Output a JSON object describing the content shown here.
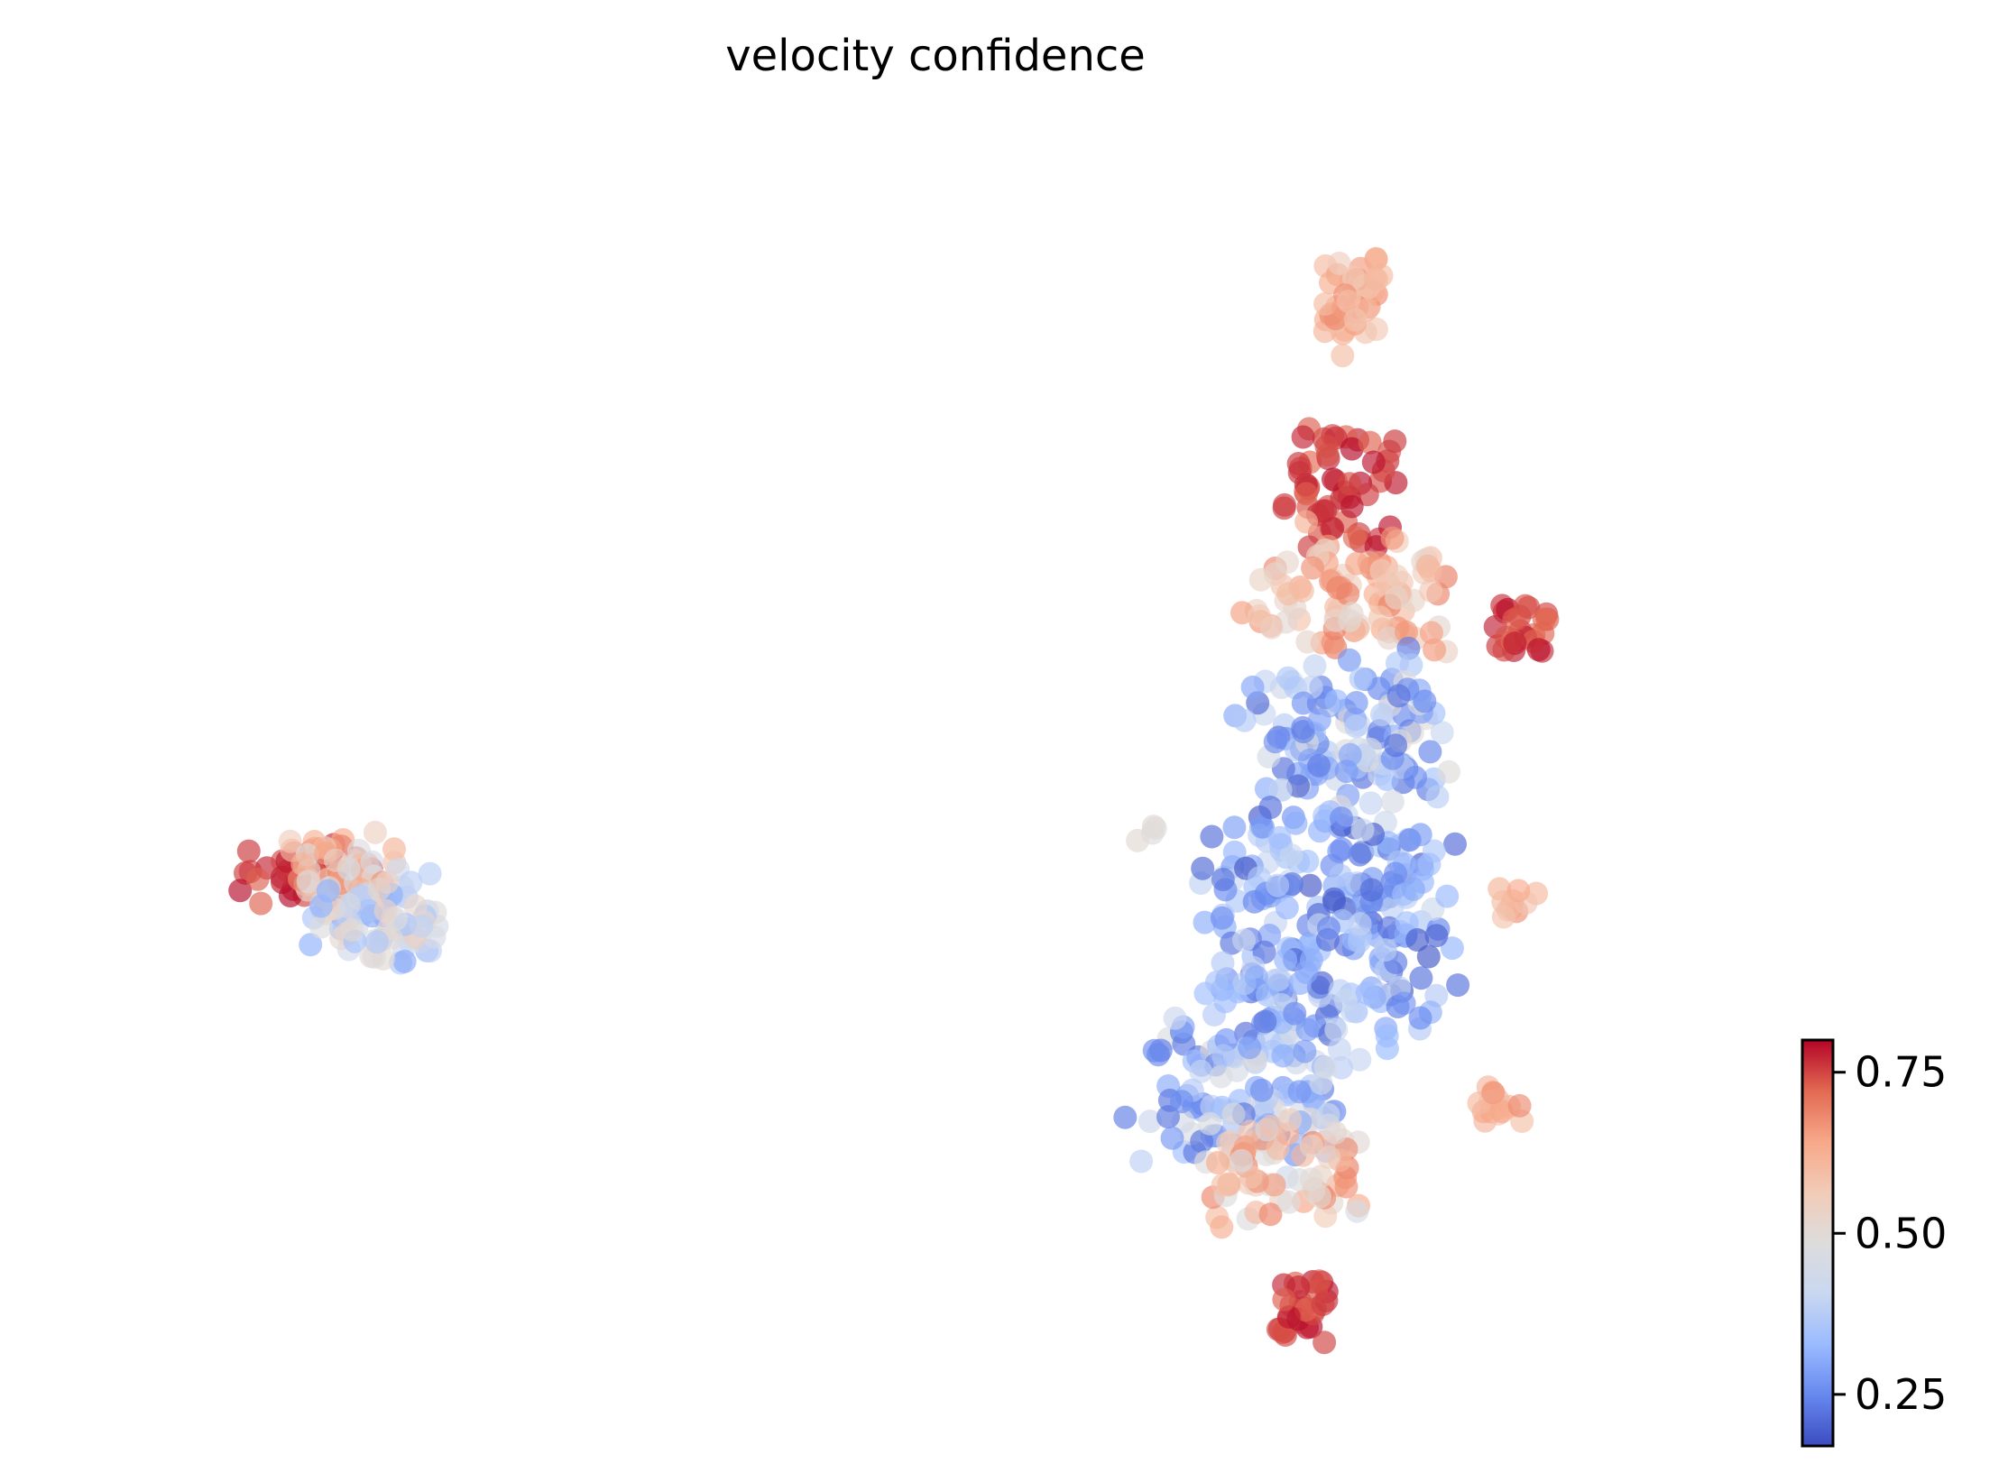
{
  "chart_data": {
    "type": "scatter",
    "title": "velocity confidence",
    "xlabel": "",
    "ylabel": "",
    "axes_visible": false,
    "grid": false,
    "marker_alpha": 0.65,
    "colormap": {
      "name": "coolwarm",
      "stops": [
        "#3b4cc0",
        "#6788ee",
        "#9abbff",
        "#c9d7f0",
        "#dddcdc",
        "#f2cbb7",
        "#f7a889",
        "#e26952",
        "#b40426"
      ]
    },
    "colorbar": {
      "location": "right",
      "range": [
        0.17,
        0.8
      ],
      "ticks": [
        0.25,
        0.5,
        0.75
      ],
      "tick_labels": [
        "0.25",
        "0.50",
        "0.75"
      ]
    },
    "xlim": [
      0,
      100
    ],
    "ylim": [
      0,
      100
    ],
    "clusters": [
      {
        "name": "",
        "x": [
          9,
          16
        ],
        "y": [
          40,
          44
        ],
        "spread": [
          2.2,
          1.6
        ],
        "n": 40,
        "value": [
          0.72,
          0.8
        ]
      },
      {
        "name": "",
        "x": [
          12,
          17
        ],
        "y": [
          39,
          44
        ],
        "spread": [
          2.6,
          2.2
        ],
        "n": 60,
        "value": [
          0.45,
          0.7
        ]
      },
      {
        "name": "",
        "x": [
          14,
          20
        ],
        "y": [
          36,
          42
        ],
        "spread": [
          3.0,
          2.5
        ],
        "n": 70,
        "value": [
          0.28,
          0.55
        ]
      },
      {
        "name": "",
        "x": [
          62,
          64
        ],
        "y": [
          44,
          46
        ],
        "spread": [
          0.6,
          0.4
        ],
        "n": 4,
        "value": [
          0.48,
          0.52
        ]
      },
      {
        "name": "",
        "x": [
          74,
          77
        ],
        "y": [
          84,
          90
        ],
        "spread": [
          1.0,
          2.2
        ],
        "n": 45,
        "value": [
          0.55,
          0.68
        ]
      },
      {
        "name": "",
        "x": [
          72,
          78
        ],
        "y": [
          68,
          76
        ],
        "spread": [
          2.2,
          2.5
        ],
        "n": 55,
        "value": [
          0.72,
          0.8
        ]
      },
      {
        "name": "",
        "x": [
          70,
          80
        ],
        "y": [
          60,
          68
        ],
        "spread": [
          3.0,
          2.5
        ],
        "n": 90,
        "value": [
          0.5,
          0.7
        ]
      },
      {
        "name": "",
        "x": [
          84,
          87
        ],
        "y": [
          59,
          63
        ],
        "spread": [
          1.0,
          1.2
        ],
        "n": 25,
        "value": [
          0.72,
          0.8
        ]
      },
      {
        "name": "",
        "x": [
          70,
          80
        ],
        "y": [
          48,
          58
        ],
        "spread": [
          3.0,
          3.0
        ],
        "n": 120,
        "value": [
          0.2,
          0.5
        ]
      },
      {
        "name": "",
        "x": [
          68,
          80
        ],
        "y": [
          30,
          46
        ],
        "spread": [
          3.5,
          4.0
        ],
        "n": 230,
        "value": [
          0.18,
          0.42
        ]
      },
      {
        "name": "",
        "x": [
          64,
          74
        ],
        "y": [
          20,
          30
        ],
        "spread": [
          3.0,
          3.0
        ],
        "n": 120,
        "value": [
          0.22,
          0.5
        ]
      },
      {
        "name": "",
        "x": [
          67,
          75
        ],
        "y": [
          15,
          22
        ],
        "spread": [
          2.6,
          2.5
        ],
        "n": 70,
        "value": [
          0.45,
          0.7
        ]
      },
      {
        "name": "",
        "x": [
          83,
          86
        ],
        "y": [
          23,
          25
        ],
        "spread": [
          1.0,
          1.0
        ],
        "n": 15,
        "value": [
          0.58,
          0.68
        ]
      },
      {
        "name": "",
        "x": [
          84,
          87
        ],
        "y": [
          38,
          41
        ],
        "spread": [
          1.0,
          1.0
        ],
        "n": 10,
        "value": [
          0.55,
          0.68
        ]
      },
      {
        "name": "",
        "x": [
          71,
          74
        ],
        "y": [
          6,
          10
        ],
        "spread": [
          1.2,
          1.6
        ],
        "n": 30,
        "value": [
          0.72,
          0.8
        ]
      }
    ]
  }
}
